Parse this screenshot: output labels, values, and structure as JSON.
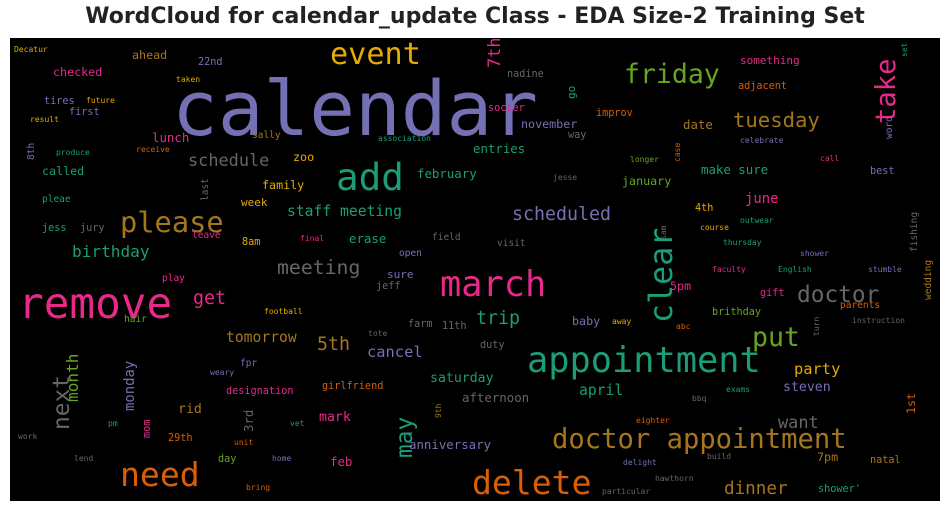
{
  "chart_data": {
    "type": "wordcloud",
    "title": "WordCloud for calendar_update Class - EDA Size-2 Training Set",
    "background": "#000000",
    "words": [
      {
        "text": "calendar",
        "weight": 100,
        "color": "#7570b3"
      },
      {
        "text": "remove",
        "weight": 55,
        "color": "#e7298a"
      },
      {
        "text": "appointment",
        "weight": 45,
        "color": "#1b9e77"
      },
      {
        "text": "march",
        "weight": 45,
        "color": "#e7298a"
      },
      {
        "text": "add",
        "weight": 48,
        "color": "#1b9e77"
      },
      {
        "text": "delete",
        "weight": 42,
        "color": "#d95f02"
      },
      {
        "text": "need",
        "weight": 42,
        "color": "#d95f02"
      },
      {
        "text": "event",
        "weight": 38,
        "color": "#e6ab02"
      },
      {
        "text": "clear",
        "weight": 40,
        "color": "#1b9e77"
      },
      {
        "text": "please",
        "weight": 36,
        "color": "#a6761d"
      },
      {
        "text": "doctor appointment",
        "weight": 34,
        "color": "#a6761d"
      },
      {
        "text": "take",
        "weight": 34,
        "color": "#e7298a"
      },
      {
        "text": "friday",
        "weight": 33,
        "color": "#66a61e"
      },
      {
        "text": "put",
        "weight": 33,
        "color": "#66a61e"
      },
      {
        "text": "doctor",
        "weight": 28,
        "color": "#666666"
      },
      {
        "text": "next",
        "weight": 28,
        "color": "#666666"
      },
      {
        "text": "may",
        "weight": 28,
        "color": "#1b9e77"
      },
      {
        "text": "tuesday",
        "weight": 25,
        "color": "#a6761d"
      },
      {
        "text": "meeting",
        "weight": 24,
        "color": "#666666"
      },
      {
        "text": "scheduled",
        "weight": 22,
        "color": "#7570b3"
      },
      {
        "text": "5th",
        "weight": 22,
        "color": "#a6761d"
      },
      {
        "text": "get",
        "weight": 22,
        "color": "#e7298a"
      },
      {
        "text": "trip",
        "weight": 22,
        "color": "#1b9e77"
      },
      {
        "text": "dinner",
        "weight": 21,
        "color": "#a6761d"
      },
      {
        "text": "schedule",
        "weight": 20,
        "color": "#666666"
      },
      {
        "text": "want",
        "weight": 20,
        "color": "#666666"
      },
      {
        "text": "7th",
        "weight": 20,
        "color": "#e7298a"
      },
      {
        "text": "birthday",
        "weight": 19,
        "color": "#1b9e77"
      },
      {
        "text": "month",
        "weight": 19,
        "color": "#66a61e"
      },
      {
        "text": "party",
        "weight": 18,
        "color": "#e6ab02"
      },
      {
        "text": "cancel",
        "weight": 18,
        "color": "#7570b3"
      },
      {
        "text": "tomorrow",
        "weight": 17,
        "color": "#a6761d"
      },
      {
        "text": "april",
        "weight": 17,
        "color": "#1b9e77"
      },
      {
        "text": "staff meeting",
        "weight": 17,
        "color": "#1b9e77"
      },
      {
        "text": "monday",
        "weight": 16,
        "color": "#7570b3"
      },
      {
        "text": "june",
        "weight": 16,
        "color": "#e7298a"
      },
      {
        "text": "steven",
        "weight": 15,
        "color": "#7570b3"
      },
      {
        "text": "rid",
        "weight": 15,
        "color": "#a6761d"
      },
      {
        "text": "saturday",
        "weight": 15,
        "color": "#1b9e77"
      },
      {
        "text": "mark",
        "weight": 15,
        "color": "#e7298a"
      },
      {
        "text": "february",
        "weight": 14,
        "color": "#1b9e77"
      },
      {
        "text": "erase",
        "weight": 14,
        "color": "#1b9e77"
      },
      {
        "text": "date",
        "weight": 14,
        "color": "#a6761d"
      },
      {
        "text": "make sure",
        "weight": 14,
        "color": "#1b9e77"
      },
      {
        "text": "lunch",
        "weight": 14,
        "color": "#e7298a"
      },
      {
        "text": "entries",
        "weight": 14,
        "color": "#1b9e77"
      },
      {
        "text": "anniversary",
        "weight": 14,
        "color": "#7570b3"
      },
      {
        "text": "afternoon",
        "weight": 14,
        "color": "#666666"
      },
      {
        "text": "feb",
        "weight": 14,
        "color": "#e7298a"
      },
      {
        "text": "3rd",
        "weight": 14,
        "color": "#666666"
      },
      {
        "text": "1st",
        "weight": 13,
        "color": "#d95f02"
      },
      {
        "text": "baby",
        "weight": 13,
        "color": "#7570b3"
      },
      {
        "text": "zoo",
        "weight": 13,
        "color": "#e6ab02"
      },
      {
        "text": "november",
        "weight": 13,
        "color": "#7570b3"
      },
      {
        "text": "family",
        "weight": 13,
        "color": "#e6ab02"
      },
      {
        "text": "checked",
        "weight": 13,
        "color": "#e7298a"
      },
      {
        "text": "ahead",
        "weight": 13,
        "color": "#a6761d"
      },
      {
        "text": "called",
        "weight": 13,
        "color": "#1b9e77"
      },
      {
        "text": "january",
        "weight": 13,
        "color": "#66a61e"
      },
      {
        "text": "5pm",
        "weight": 13,
        "color": "#e7298a"
      },
      {
        "text": "7pm",
        "weight": 13,
        "color": "#a6761d"
      },
      {
        "text": "week",
        "weight": 12,
        "color": "#e6ab02"
      },
      {
        "text": "sure",
        "weight": 12,
        "color": "#7570b3"
      },
      {
        "text": "go",
        "weight": 12,
        "color": "#1b9e77"
      },
      {
        "text": "something",
        "weight": 12,
        "color": "#e7298a"
      },
      {
        "text": "nadine",
        "weight": 11,
        "color": "#666666"
      },
      {
        "text": "soccer",
        "weight": 11,
        "color": "#e7298a"
      },
      {
        "text": "improv",
        "weight": 11,
        "color": "#d95f02"
      },
      {
        "text": "way",
        "weight": 11,
        "color": "#666666"
      },
      {
        "text": "adjacent",
        "weight": 11,
        "color": "#d95f02"
      },
      {
        "text": "mom",
        "weight": 11,
        "color": "#e7298a"
      },
      {
        "text": "29th",
        "weight": 11,
        "color": "#d95f02"
      },
      {
        "text": "day",
        "weight": 11,
        "color": "#66a61e"
      },
      {
        "text": "designation",
        "weight": 11,
        "color": "#e7298a"
      },
      {
        "text": "girlfriend",
        "weight": 11,
        "color": "#d95f02"
      },
      {
        "text": "duty",
        "weight": 11,
        "color": "#666666"
      },
      {
        "text": "11th",
        "weight": 11,
        "color": "#666666"
      },
      {
        "text": "farm",
        "weight": 11,
        "color": "#666666"
      },
      {
        "text": "jeff",
        "weight": 11,
        "color": "#666666"
      },
      {
        "text": "jess",
        "weight": 11,
        "color": "#1b9e77"
      },
      {
        "text": "jury",
        "weight": 11,
        "color": "#666666"
      },
      {
        "text": "first",
        "weight": 11,
        "color": "#7570b3"
      },
      {
        "text": "tires",
        "weight": 11,
        "color": "#7570b3"
      },
      {
        "text": "22nd",
        "weight": 11,
        "color": "#7570b3"
      },
      {
        "text": "8am",
        "weight": 11,
        "color": "#e6ab02"
      },
      {
        "text": "4th",
        "weight": 11,
        "color": "#e6ab02"
      },
      {
        "text": "best",
        "weight": 11,
        "color": "#7570b3"
      },
      {
        "text": "gift",
        "weight": 11,
        "color": "#e7298a"
      },
      {
        "text": "brithday",
        "weight": 11,
        "color": "#66a61e"
      },
      {
        "text": "shower'",
        "weight": 11,
        "color": "#1b9e77"
      },
      {
        "text": "natal",
        "weight": 11,
        "color": "#a6761d"
      },
      {
        "text": "pleae",
        "weight": 10,
        "color": "#1b9e77"
      },
      {
        "text": "visit",
        "weight": 10,
        "color": "#666666"
      },
      {
        "text": "open",
        "weight": 10,
        "color": "#7570b3"
      },
      {
        "text": "field",
        "weight": 10,
        "color": "#666666"
      },
      {
        "text": "leave",
        "weight": 10,
        "color": "#e7298a"
      },
      {
        "text": "sally",
        "weight": 10,
        "color": "#a6761d"
      },
      {
        "text": "hair",
        "weight": 10,
        "color": "#66a61e"
      },
      {
        "text": "fpr",
        "weight": 10,
        "color": "#7570b3"
      },
      {
        "text": "play",
        "weight": 10,
        "color": "#e7298a"
      },
      {
        "text": "parents",
        "weight": 10,
        "color": "#d95f02"
      },
      {
        "text": "wedding",
        "weight": 10,
        "color": "#a6761d"
      },
      {
        "text": "fishing",
        "weight": 10,
        "color": "#666666"
      },
      {
        "text": "8th",
        "weight": 10,
        "color": "#7570b3"
      },
      {
        "text": "word",
        "weight": 10,
        "color": "#7570b3"
      },
      {
        "text": "last",
        "weight": 10,
        "color": "#666666"
      },
      {
        "text": "Decatur",
        "weight": 8,
        "color": "#e6ab02"
      },
      {
        "text": "taken",
        "weight": 8,
        "color": "#e6ab02"
      },
      {
        "text": "future",
        "weight": 8,
        "color": "#e6ab02"
      },
      {
        "text": "result",
        "weight": 8,
        "color": "#e6ab02"
      },
      {
        "text": "produce",
        "weight": 8,
        "color": "#1b9e77"
      },
      {
        "text": "receive",
        "weight": 8,
        "color": "#d95f02"
      },
      {
        "text": "association",
        "weight": 8,
        "color": "#1b9e77"
      },
      {
        "text": "celebrate",
        "weight": 8,
        "color": "#7570b3"
      },
      {
        "text": "longer",
        "weight": 8,
        "color": "#66a61e"
      },
      {
        "text": "case",
        "weight": 8,
        "color": "#d95f02"
      },
      {
        "text": "call",
        "weight": 8,
        "color": "#e7298a"
      },
      {
        "text": "jesse",
        "weight": 8,
        "color": "#666666"
      },
      {
        "text": "set",
        "weight": 8,
        "color": "#1b9e77"
      },
      {
        "text": "outwear",
        "weight": 8,
        "color": "#1b9e77"
      },
      {
        "text": "sam",
        "weight": 8,
        "color": "#666666"
      },
      {
        "text": "course",
        "weight": 8,
        "color": "#e6ab02"
      },
      {
        "text": "thursday",
        "weight": 8,
        "color": "#1b9e77"
      },
      {
        "text": "shower",
        "weight": 8,
        "color": "#7570b3"
      },
      {
        "text": "final",
        "weight": 8,
        "color": "#e7298a"
      },
      {
        "text": "faculty",
        "weight": 8,
        "color": "#e7298a"
      },
      {
        "text": "English",
        "weight": 8,
        "color": "#1b9e77"
      },
      {
        "text": "stumble",
        "weight": 8,
        "color": "#7570b3"
      },
      {
        "text": "football",
        "weight": 8,
        "color": "#e6ab02"
      },
      {
        "text": "tote",
        "weight": 8,
        "color": "#666666"
      },
      {
        "text": "away",
        "weight": 8,
        "color": "#e6ab02"
      },
      {
        "text": "abc",
        "weight": 8,
        "color": "#d95f02"
      },
      {
        "text": "turn",
        "weight": 8,
        "color": "#666666"
      },
      {
        "text": "instruction",
        "weight": 8,
        "color": "#666666"
      },
      {
        "text": "weary",
        "weight": 8,
        "color": "#7570b3"
      },
      {
        "text": "exams",
        "weight": 8,
        "color": "#1b9e77"
      },
      {
        "text": "bbq",
        "weight": 8,
        "color": "#666666"
      },
      {
        "text": "9th",
        "weight": 8,
        "color": "#a6761d"
      },
      {
        "text": "work",
        "weight": 8,
        "color": "#666666"
      },
      {
        "text": "pm",
        "weight": 8,
        "color": "#1b9e77"
      },
      {
        "text": "unit",
        "weight": 8,
        "color": "#d95f02"
      },
      {
        "text": "vet",
        "weight": 8,
        "color": "#1b9e77"
      },
      {
        "text": "eighter",
        "weight": 8,
        "color": "#d95f02"
      },
      {
        "text": "delight",
        "weight": 8,
        "color": "#7570b3"
      },
      {
        "text": "build",
        "weight": 8,
        "color": "#666666"
      },
      {
        "text": "lend",
        "weight": 8,
        "color": "#666666"
      },
      {
        "text": "home",
        "weight": 8,
        "color": "#7570b3"
      },
      {
        "text": "hawthorn",
        "weight": 8,
        "color": "#666666"
      },
      {
        "text": "bring",
        "weight": 8,
        "color": "#d95f02"
      },
      {
        "text": "particular",
        "weight": 8,
        "color": "#666666"
      }
    ]
  }
}
